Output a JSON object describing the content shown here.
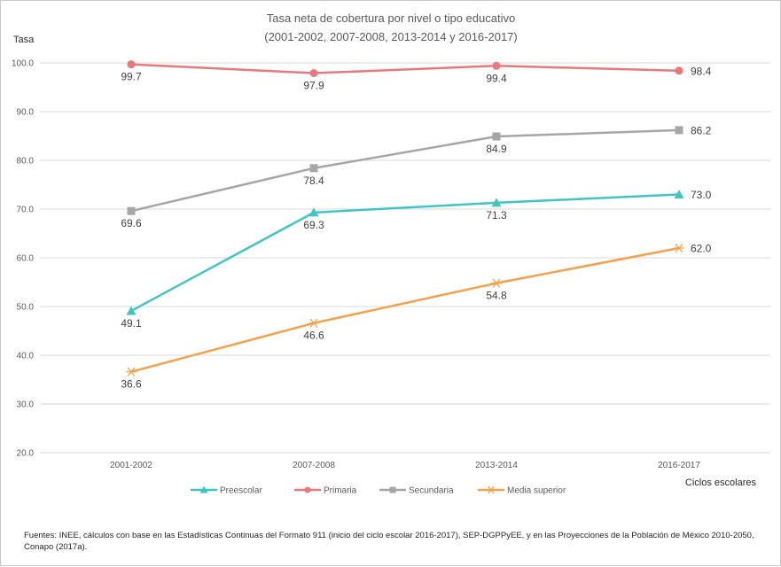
{
  "chart_data": {
    "type": "line",
    "title_lines": [
      "Tasa neta de cobertura  por nivel  o tipo educativo",
      "(2001-2002, 2007-2008, 2013-2014 y 2016-2017)"
    ],
    "ylabel": "Tasa",
    "xlabel": "Ciclos escolares",
    "categories": [
      "2001-2002",
      "2007-2008",
      "2013-2014",
      "2016-2017"
    ],
    "ylim": [
      20,
      100
    ],
    "yticks": [
      "20.0",
      "30.0",
      "40.0",
      "50.0",
      "60.0",
      "70.0",
      "80.0",
      "90.0",
      "100.0"
    ],
    "grid": true,
    "legend_position": "bottom",
    "series": [
      {
        "name": "Preescolar",
        "values": [
          49.1,
          69.3,
          71.3,
          73.0
        ],
        "labels": [
          "49.1",
          "69.3",
          "71.3",
          "73.0"
        ],
        "color": "#3fc6c4",
        "marker": "triangle"
      },
      {
        "name": "Primaria",
        "values": [
          99.7,
          97.9,
          99.4,
          98.4
        ],
        "labels": [
          "99.7",
          "97.9",
          "99.4",
          "98.4"
        ],
        "color": "#e8787a",
        "marker": "circle"
      },
      {
        "name": "Secundaria",
        "values": [
          69.6,
          78.4,
          84.9,
          86.2
        ],
        "labels": [
          "69.6",
          "78.4",
          "84.9",
          "86.2"
        ],
        "color": "#a6a6a6",
        "marker": "square"
      },
      {
        "name": "Media superior",
        "values": [
          36.6,
          46.6,
          54.8,
          62.0
        ],
        "labels": [
          "36.6",
          "46.6",
          "54.8",
          "62.0"
        ],
        "color": "#f5a14a",
        "marker": "star"
      }
    ]
  },
  "source_note": "Fuentes: INEE, cálculos con base en las Estadísticas Continuas del Formato 911 (inicio del ciclo escolar 2016-2017), SEP-DGPPyEE, y en las Proyecciones de la Población de México 2010-2050, Conapo (2017a)."
}
